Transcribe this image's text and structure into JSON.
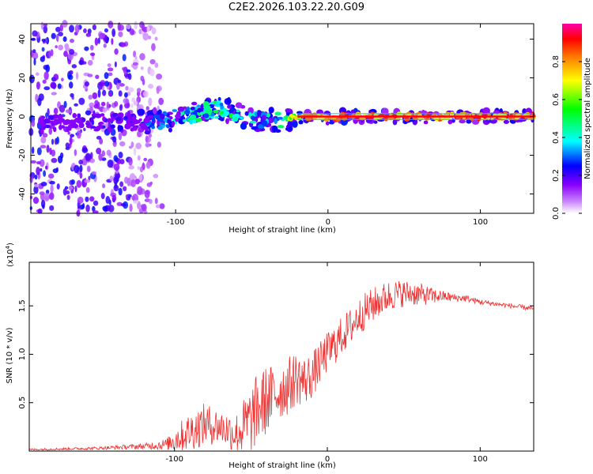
{
  "figure_title": "C2E2.2026.103.22.20.G09",
  "chart_data": [
    {
      "type": "heatmap",
      "title": "C2E2.2026.103.22.20.G09",
      "xlabel": "Height of straight line (km)",
      "ylabel": "Frequency (Hz)",
      "xlim": [
        -195,
        135
      ],
      "ylim": [
        -50,
        48
      ],
      "xticks": [
        -100,
        0,
        100
      ],
      "yticks": [
        -40,
        -20,
        0,
        20,
        40
      ],
      "colorbar": {
        "label": "Normalized spectral amplitude",
        "range": [
          0,
          1
        ],
        "ticks": [
          0.0,
          0.2,
          0.4,
          0.6,
          0.8
        ],
        "tick_labels": [
          "0.0",
          "0.2",
          "0.4",
          "0.6",
          "0.8"
        ],
        "colormap": [
          "#ffffff",
          "#9900ff",
          "#0000ff",
          "#00ffff",
          "#00ff00",
          "#ffff00",
          "#ff8000",
          "#ff0000",
          "#ff00aa"
        ]
      },
      "track": {
        "description": "ridge of spectral power near 0 Hz",
        "x": [
          -190,
          -160,
          -130,
          -110,
          -90,
          -70,
          -60,
          -50,
          -40,
          -30,
          -20,
          -10,
          0,
          10,
          20,
          40,
          60,
          80,
          100,
          120,
          135
        ],
        "y": [
          -4,
          -3,
          -3,
          -2,
          1,
          4,
          2,
          -1,
          -3,
          -1,
          0,
          0,
          -1,
          0,
          0,
          0,
          0,
          0,
          0,
          0,
          0
        ],
        "amplitude": [
          0.2,
          0.2,
          0.25,
          0.35,
          0.5,
          0.55,
          0.55,
          0.5,
          0.45,
          0.6,
          0.85,
          0.9,
          0.95,
          0.95,
          0.95,
          0.95,
          0.95,
          0.95,
          0.95,
          0.95,
          0.95
        ]
      },
      "noise_region": {
        "x_range": [
          -195,
          -115
        ],
        "y_range": [
          -50,
          48
        ],
        "amplitude": 0.15
      }
    },
    {
      "type": "line",
      "xlabel": "Height of straight line (km)",
      "ylabel": "SNR (10 * v/v)",
      "y_multiplier": "(x10",
      "y_multiplier_exp": "4",
      "y_multiplier_close": ")",
      "xlim": [
        -195,
        135
      ],
      "ylim": [
        0,
        19500
      ],
      "xticks": [
        -100,
        0,
        100
      ],
      "yticks": [
        5000,
        10000,
        15000
      ],
      "ytick_labels": [
        "0.5",
        "1.0",
        "1.5"
      ],
      "series": [
        {
          "name": "SNR",
          "color": "#ee3333",
          "x": [
            -195,
            -150,
            -120,
            -105,
            -100,
            -90,
            -80,
            -70,
            -60,
            -55,
            -50,
            -45,
            -40,
            -35,
            -30,
            -25,
            -20,
            -15,
            -10,
            -5,
            0,
            5,
            10,
            15,
            20,
            25,
            30,
            35,
            40,
            45,
            50,
            55,
            60,
            65,
            70,
            75,
            80,
            85,
            90,
            95,
            100,
            110,
            120,
            135
          ],
          "y": [
            150,
            300,
            500,
            700,
            1200,
            2000,
            2800,
            2500,
            1800,
            2400,
            3200,
            4500,
            5200,
            5800,
            6300,
            6800,
            7600,
            7200,
            7800,
            9000,
            10200,
            11000,
            12000,
            12800,
            13800,
            14500,
            15100,
            15600,
            16000,
            16200,
            16300,
            16300,
            16200,
            16100,
            16000,
            16000,
            15900,
            15800,
            15800,
            15600,
            15400,
            15200,
            15000,
            14700
          ],
          "spread": [
            100,
            150,
            300,
            600,
            1300,
            2000,
            2200,
            1800,
            2000,
            3000,
            3500,
            3800,
            3600,
            3200,
            3000,
            3000,
            2800,
            2600,
            2400,
            2200,
            2100,
            2100,
            2000,
            2000,
            1900,
            1900,
            1800,
            1700,
            1600,
            1500,
            1400,
            1300,
            1200,
            1000,
            800,
            600,
            500,
            400,
            400,
            300,
            300,
            250,
            250,
            250
          ]
        }
      ]
    }
  ]
}
